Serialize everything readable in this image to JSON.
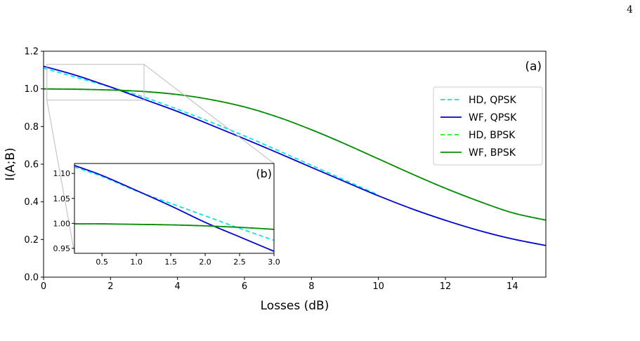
{
  "page_number": "4",
  "colors": {
    "hd_qpsk": "#00e5ee",
    "wf_qpsk": "#0000cd",
    "hd_bpsk": "#22ee22",
    "wf_bpsk": "#0a8a0a",
    "zoom_box": "#bbbbbb"
  },
  "chart_data": [
    {
      "type": "line",
      "panel_label": "(a)",
      "xlabel": "Losses (dB)",
      "ylabel": "I(A;B)",
      "xlim": [
        0,
        15
      ],
      "ylim": [
        0,
        1.2
      ],
      "xticks": [
        0,
        2,
        4,
        6,
        8,
        10,
        12,
        14
      ],
      "xtick_labels": [
        "0",
        "2",
        "4",
        "6",
        "8",
        "10",
        "12",
        "14"
      ],
      "yticks": [
        0.0,
        0.2,
        0.4,
        0.6,
        0.8,
        1.0,
        1.2
      ],
      "ytick_labels": [
        "0.0",
        "0.2",
        "0.4",
        "0.6",
        "0.8",
        "1.0",
        "1.2"
      ],
      "legend_position": "upper-right",
      "x": [
        0,
        1,
        2,
        3,
        4,
        5,
        6,
        7,
        8,
        9,
        10,
        11,
        12,
        13,
        14,
        15
      ],
      "series": [
        {
          "name": "HD, QPSK",
          "style": "dashed",
          "color": "#00e5ee",
          "x": [
            0,
            1,
            2,
            3,
            4,
            5,
            6,
            7,
            8,
            9,
            10
          ],
          "values": [
            1.11,
            1.06,
            1.01,
            0.956,
            0.892,
            0.823,
            0.75,
            0.673,
            0.594,
            0.515,
            0.437
          ]
        },
        {
          "name": "WF, QPSK",
          "style": "solid",
          "color": "#0000cd",
          "values": [
            1.12,
            1.07,
            1.01,
            0.945,
            0.88,
            0.808,
            0.735,
            0.66,
            0.583,
            0.507,
            0.432,
            0.363,
            0.302,
            0.248,
            0.203,
            0.168
          ]
        },
        {
          "name": "HD, BPSK",
          "style": "dashed",
          "color": "#22ee22",
          "values": [
            1.0,
            0.998,
            0.994,
            0.986,
            0.97,
            0.943,
            0.904,
            0.85,
            0.783,
            0.708,
            0.628,
            0.548,
            0.472,
            0.403,
            0.342,
            0.303
          ]
        },
        {
          "name": "WF, BPSK",
          "style": "solid",
          "color": "#0a8a0a",
          "values": [
            1.0,
            0.998,
            0.994,
            0.986,
            0.97,
            0.943,
            0.904,
            0.85,
            0.783,
            0.708,
            0.628,
            0.548,
            0.472,
            0.403,
            0.342,
            0.303
          ]
        }
      ],
      "zoom_region": {
        "x": [
          0.1,
          3.0
        ],
        "y": [
          0.94,
          1.13
        ]
      }
    },
    {
      "type": "line",
      "panel_label": "(b)",
      "xlim": [
        0.1,
        3.0
      ],
      "ylim": [
        0.94,
        1.12
      ],
      "xticks": [
        0.5,
        1.0,
        1.5,
        2.0,
        2.5,
        3.0
      ],
      "xtick_labels": [
        "0.5",
        "1.0",
        "1.5",
        "2.0",
        "2.5",
        "3.0"
      ],
      "yticks": [
        0.95,
        1.0,
        1.05,
        1.1
      ],
      "ytick_labels": [
        "0.95",
        "1.00",
        "1.05",
        "1.10"
      ],
      "x": [
        0.1,
        0.5,
        1.0,
        1.5,
        2.0,
        2.5,
        3.0
      ],
      "series": [
        {
          "name": "HD, QPSK",
          "style": "dashed",
          "color": "#00e5ee",
          "values": [
            1.113,
            1.094,
            1.065,
            1.04,
            1.015,
            0.99,
            0.966
          ]
        },
        {
          "name": "WF, QPSK",
          "style": "solid",
          "color": "#0000cd",
          "values": [
            1.116,
            1.096,
            1.066,
            1.035,
            1.002,
            0.973,
            0.944
          ]
        },
        {
          "name": "HD, BPSK",
          "style": "dashed",
          "color": "#22ee22",
          "values": [
            0.999,
            0.999,
            0.998,
            0.997,
            0.995,
            0.992,
            0.988
          ]
        },
        {
          "name": "WF, BPSK",
          "style": "solid",
          "color": "#0a8a0a",
          "values": [
            0.999,
            0.999,
            0.998,
            0.997,
            0.995,
            0.992,
            0.988
          ]
        }
      ]
    }
  ]
}
